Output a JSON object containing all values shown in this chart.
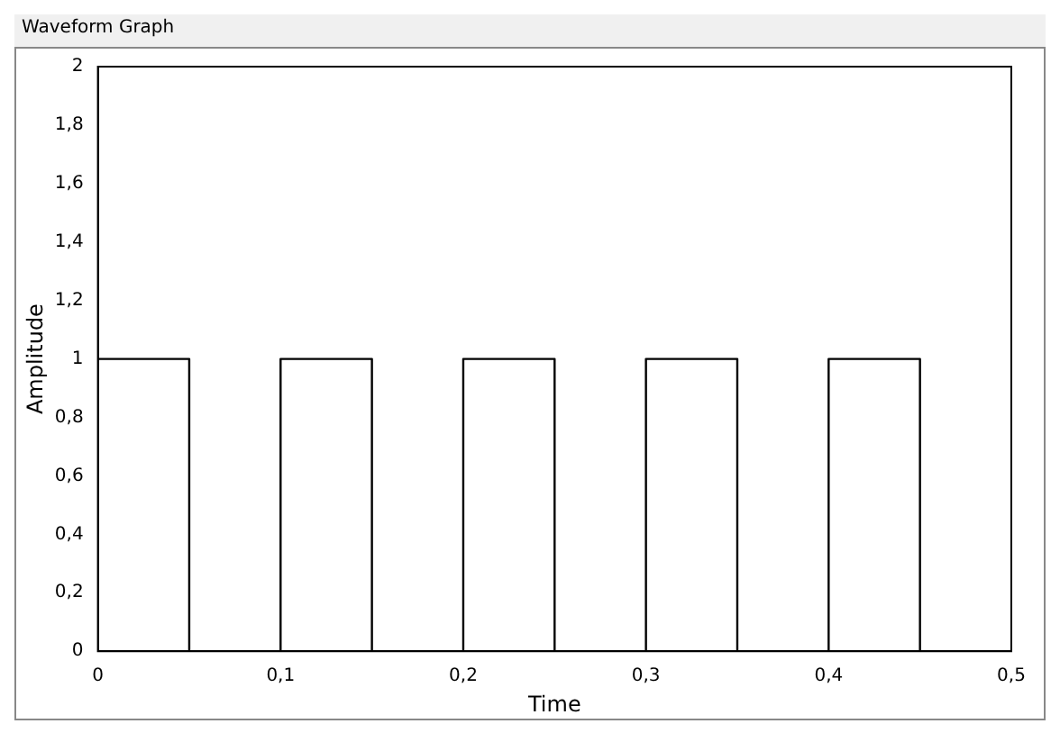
{
  "chart_data": {
    "type": "step",
    "title": "Waveform Graph",
    "xlabel": "Time",
    "ylabel": "Amplitude",
    "x": [
      0,
      0.05,
      0.1,
      0.15,
      0.2,
      0.25,
      0.3,
      0.35,
      0.4,
      0.45,
      0.5
    ],
    "series": [
      {
        "color": "#000000",
        "values": [
          1,
          0,
          1,
          0,
          1,
          0,
          1,
          0,
          1,
          0,
          0
        ]
      }
    ],
    "xlim": [
      0,
      0.5
    ],
    "xticks": [
      0,
      {
        "value": 0.1,
        "label": "0,1"
      },
      {
        "value": 0.2,
        "label": "0,2"
      },
      {
        "value": 0.3,
        "label": "0,3"
      },
      {
        "value": 0.4,
        "label": "0,4"
      },
      {
        "value": 0.5,
        "label": "0,5"
      }
    ],
    "ylim": [
      0,
      2
    ],
    "yticks": [
      0,
      {
        "value": 0.2,
        "label": "0,2"
      },
      {
        "value": 0.4,
        "label": "0,4"
      },
      {
        "value": 0.6,
        "label": "0,6"
      },
      {
        "value": 0.8,
        "label": "0,8"
      },
      1,
      {
        "value": 1.2,
        "label": "1,2"
      },
      {
        "value": 1.4,
        "label": "1,4"
      },
      {
        "value": 1.6,
        "label": "1,6"
      },
      {
        "value": 1.8,
        "label": "1,8"
      },
      2
    ],
    "grid": false,
    "legend": false,
    "marker": "none",
    "line_style": "solid"
  }
}
